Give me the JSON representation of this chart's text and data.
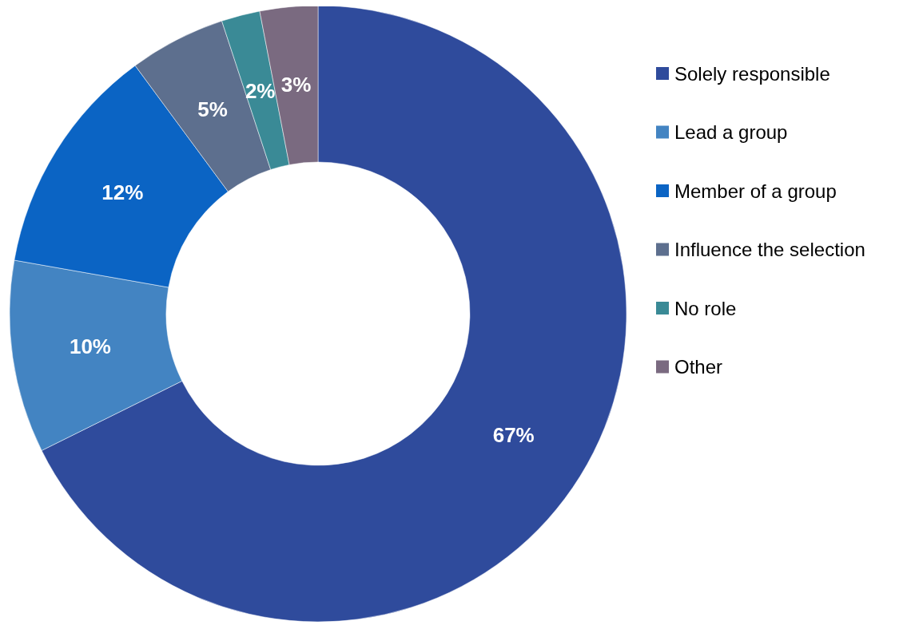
{
  "chart_data": {
    "type": "donut",
    "categories": [
      "Solely responsible",
      "Lead a group",
      "Member of a group",
      "Influence the selection",
      "No role",
      "Other"
    ],
    "values": [
      67,
      10,
      12,
      5,
      2,
      3
    ],
    "colors": [
      "#2f4b9c",
      "#4384c2",
      "#0b64c4",
      "#5d6f8e",
      "#3a8a96",
      "#7a6a80"
    ],
    "value_labels": [
      "67%",
      "10%",
      "12%",
      "5%",
      "2%",
      "3%"
    ],
    "legend": "right"
  }
}
